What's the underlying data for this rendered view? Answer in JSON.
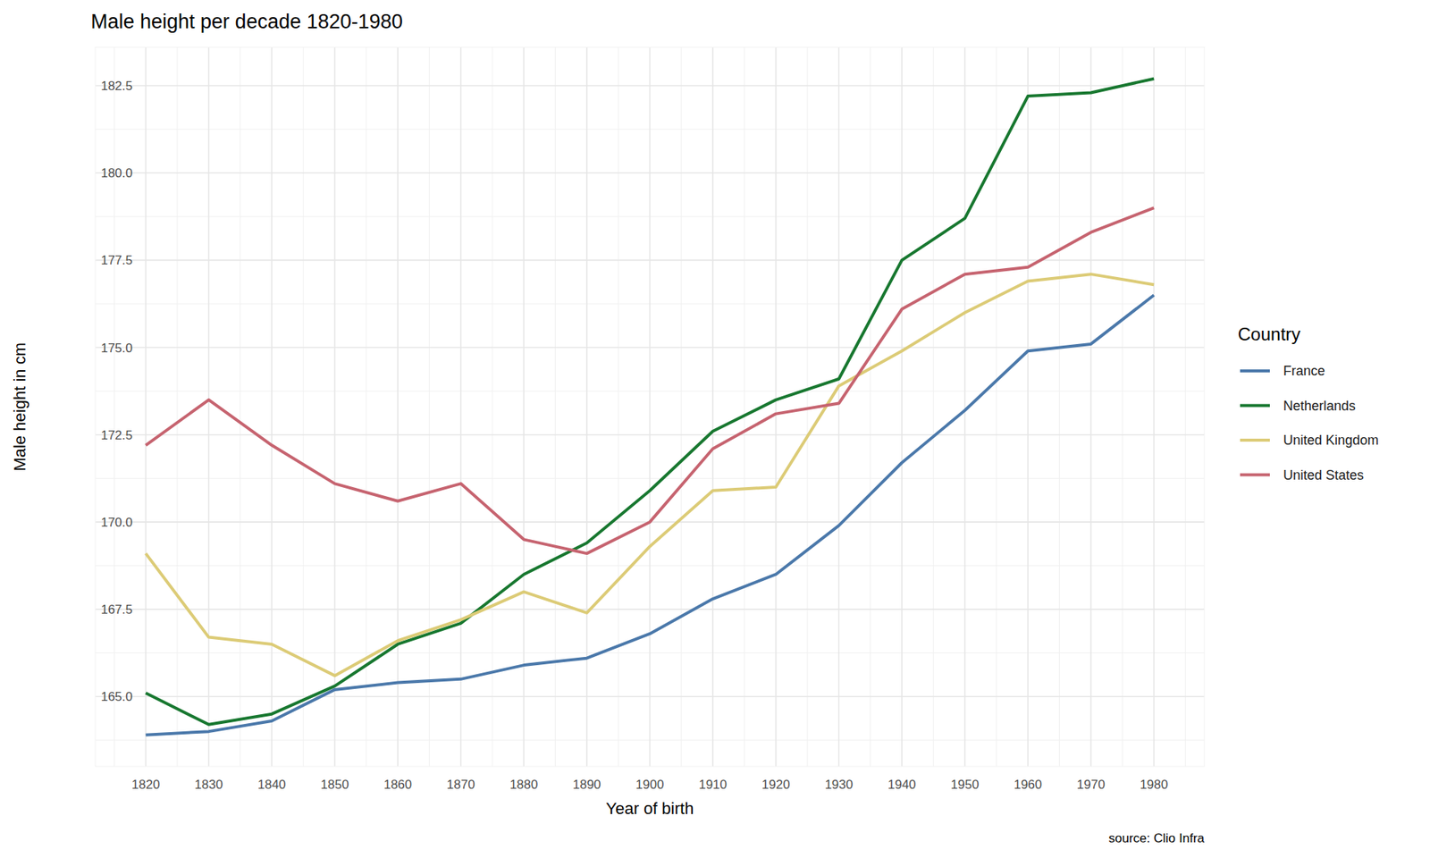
{
  "chart_data": {
    "type": "line",
    "title": "Male height per decade 1820-1980",
    "x_label": "Year of birth",
    "y_label": "Male height in cm",
    "legend_title": "Country",
    "caption": "source: Clio Infra",
    "x": [
      1820,
      1830,
      1840,
      1850,
      1860,
      1870,
      1880,
      1890,
      1900,
      1910,
      1920,
      1930,
      1940,
      1950,
      1960,
      1970,
      1980
    ],
    "series": [
      {
        "name": "France",
        "color": "#4a78aa",
        "values": [
          163.9,
          164.0,
          164.3,
          165.2,
          165.4,
          165.5,
          165.9,
          166.1,
          166.8,
          167.8,
          168.5,
          169.9,
          171.7,
          173.2,
          174.9,
          175.1,
          176.5
        ]
      },
      {
        "name": "Netherlands",
        "color": "#17772f",
        "values": [
          165.1,
          164.2,
          164.5,
          165.3,
          166.5,
          167.1,
          168.5,
          169.4,
          170.9,
          172.6,
          173.5,
          174.1,
          177.5,
          178.7,
          182.2,
          182.3,
          182.7
        ]
      },
      {
        "name": "United Kingdom",
        "color": "#dccb76",
        "values": [
          169.1,
          166.7,
          166.5,
          165.6,
          166.6,
          167.2,
          168.0,
          167.4,
          169.3,
          170.9,
          171.0,
          173.9,
          174.9,
          176.0,
          176.9,
          177.1,
          176.8
        ]
      },
      {
        "name": "United States",
        "color": "#c6636f",
        "values": [
          172.2,
          173.5,
          172.2,
          171.1,
          170.6,
          171.1,
          169.5,
          169.1,
          170.0,
          172.1,
          173.1,
          173.4,
          176.1,
          177.1,
          177.3,
          178.3,
          179.0
        ]
      }
    ],
    "xlim": [
      1812,
      1988
    ],
    "xticks": [
      1820,
      1830,
      1840,
      1850,
      1860,
      1870,
      1880,
      1890,
      1900,
      1910,
      1920,
      1930,
      1940,
      1950,
      1960,
      1970,
      1980
    ],
    "ylim": [
      163,
      183.6
    ],
    "yticks": [
      {
        "value": 165,
        "label": "165.0"
      },
      167.5,
      {
        "value": 170,
        "label": "170.0"
      },
      172.5,
      {
        "value": 175,
        "label": "175.0"
      },
      177.5,
      {
        "value": 180,
        "label": "180.0"
      },
      182.5
    ],
    "grid": true,
    "legend": "right"
  }
}
